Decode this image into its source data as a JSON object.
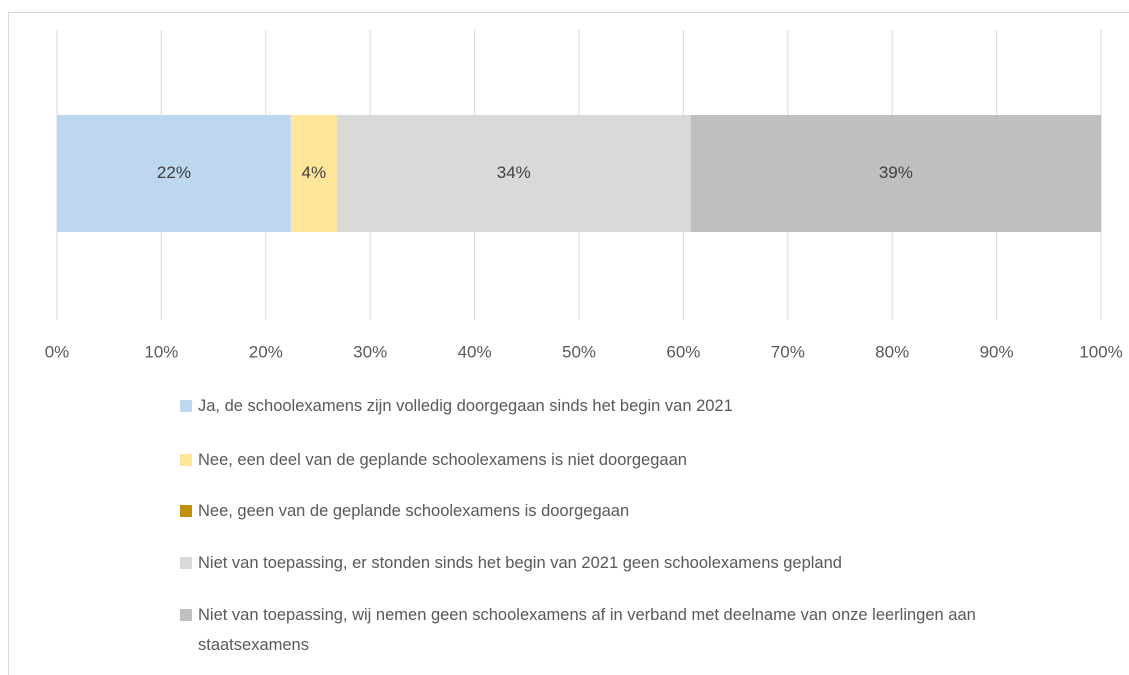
{
  "chart_data": {
    "type": "stacked-bar-horizontal",
    "categories": [
      null
    ],
    "series": [
      {
        "name": "Ja, de schoolexamens zijn volledig doorgegaan sinds het begin van 2021",
        "color": "#bdd7ee",
        "values": [
          22.4
        ],
        "value_labels": [
          "22%"
        ]
      },
      {
        "name": "Nee, een deel van de geplande schoolexamens is niet doorgegaan",
        "color": "#ffe699",
        "values": [
          4.4
        ],
        "value_labels": [
          "4%"
        ]
      },
      {
        "name": "Nee, geen van de geplande schoolexamens is doorgegaan",
        "color": "#bf9000",
        "values": [
          0
        ]
      },
      {
        "name": "Niet van toepassing, er stonden sinds het begin van 2021 geen schoolexamens gepland",
        "color": "#d9d9d9",
        "values": [
          33.9
        ],
        "value_labels": [
          "34%"
        ]
      },
      {
        "name": "Niet van toepassing, wij nemen geen schoolexamens af in verband met deelname van onze leerlingen aan staatsexamens",
        "color": "#bfbfbf",
        "values": [
          39.3
        ],
        "value_labels": [
          "39%"
        ]
      }
    ],
    "xlim": [
      0,
      100
    ],
    "xticks": [
      {
        "value": 0,
        "label": "0%"
      },
      {
        "value": 10,
        "label": "10%"
      },
      {
        "value": 20,
        "label": "20%"
      },
      {
        "value": 30,
        "label": "30%"
      },
      {
        "value": 40,
        "label": "40%"
      },
      {
        "value": 50,
        "label": "50%"
      },
      {
        "value": 60,
        "label": "60%"
      },
      {
        "value": 70,
        "label": "70%"
      },
      {
        "value": 80,
        "label": "80%"
      },
      {
        "value": 90,
        "label": "90%"
      },
      {
        "value": 100,
        "label": "100%"
      }
    ],
    "grid": true,
    "legend": "bottom"
  }
}
